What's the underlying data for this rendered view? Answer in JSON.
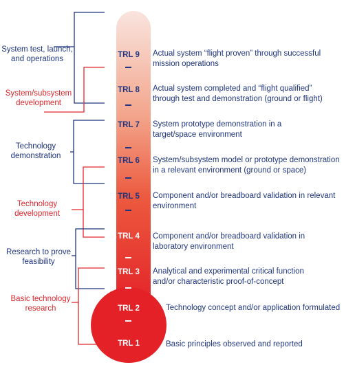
{
  "colors": {
    "blue": "#1f3580",
    "red": "#e2262b",
    "tube_top": "#f9e4de",
    "tube_bottom": "#e32127"
  },
  "stages": [
    {
      "id": "system-test",
      "color": "blue",
      "lines": [
        "System test, launch,",
        "and operations"
      ]
    },
    {
      "id": "system-development",
      "color": "red",
      "lines": [
        "System/subsystem",
        "development"
      ]
    },
    {
      "id": "technology-demonstration",
      "color": "blue",
      "lines": [
        "Technology",
        "demonstration"
      ]
    },
    {
      "id": "technology-development",
      "color": "red",
      "lines": [
        "Technology",
        "development"
      ]
    },
    {
      "id": "research-feasibility",
      "color": "blue",
      "lines": [
        "Research to prove",
        "feasibility"
      ]
    },
    {
      "id": "basic-research",
      "color": "red",
      "lines": [
        "Basic technology",
        "research"
      ]
    }
  ],
  "levels": [
    {
      "label": "TRL 9",
      "description": "Actual system “flight proven” through successful mission operations"
    },
    {
      "label": "TRL 8",
      "description": "Actual system completed and “flight qualified” through test and demonstration (ground or flight)"
    },
    {
      "label": "TRL 7",
      "description": "System prototype demonstration in a target/space environment"
    },
    {
      "label": "TRL 6",
      "description": "System/subsystem model or prototype demonstration in a relevant environment (ground or space)"
    },
    {
      "label": "TRL 5",
      "description": "Component and/or breadboard validation in relevant environment"
    },
    {
      "label": "TRL 4",
      "description": "Component and/or breadboard validation in laboratory environment"
    },
    {
      "label": "TRL 3",
      "description": "Analytical and experimental critical function and/or characteristic proof-of-concept"
    },
    {
      "label": "TRL 2",
      "description": "Technology concept and/or application formulated"
    },
    {
      "label": "TRL 1",
      "description": "Basic principles observed and reported"
    }
  ]
}
